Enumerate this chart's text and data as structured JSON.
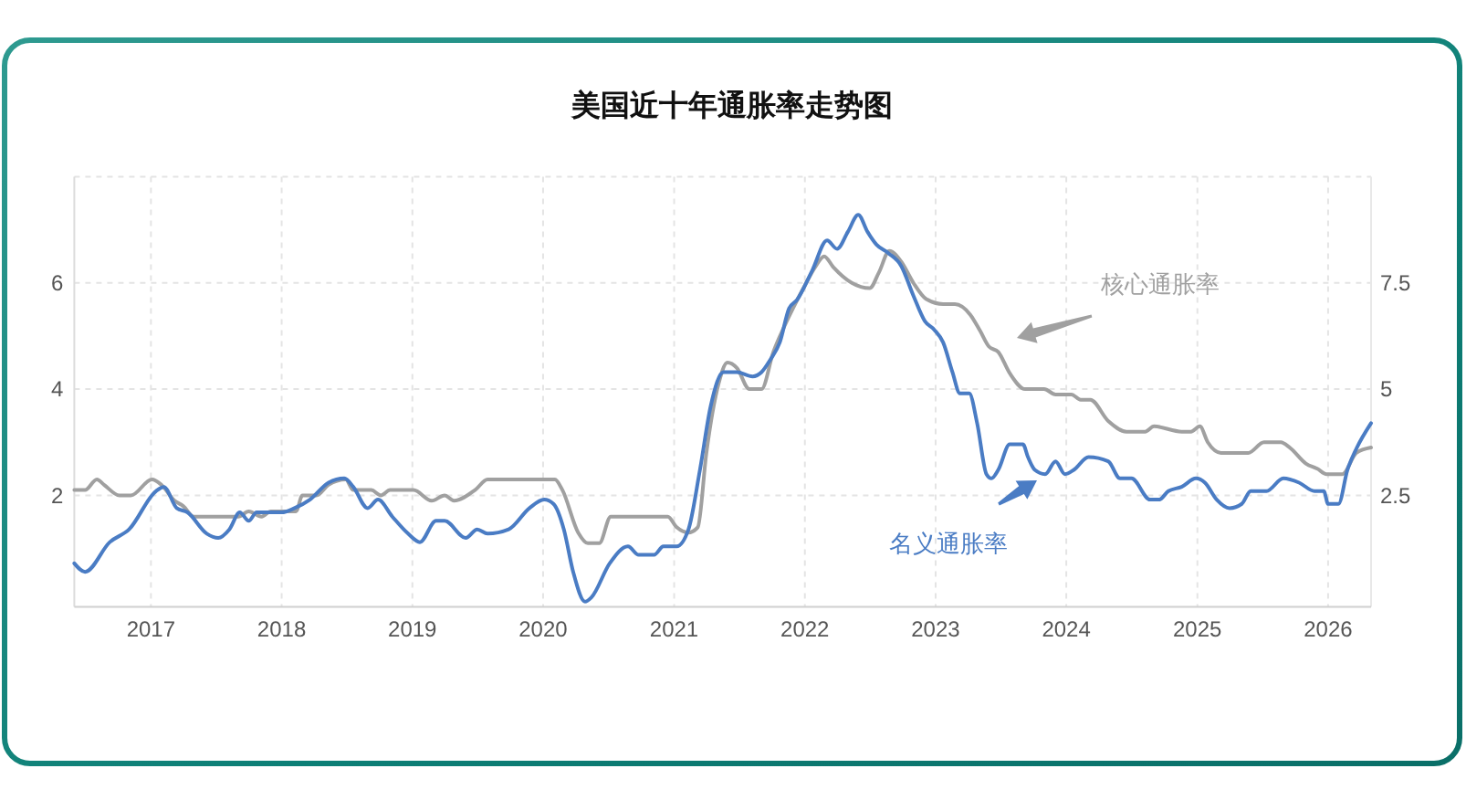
{
  "chart_data": {
    "type": "line",
    "title": "美国近十年通胀率走势图",
    "xlim": [
      "2016-06-01",
      "2026-05-01"
    ],
    "xticks": [
      "2017",
      "2018",
      "2019",
      "2020",
      "2021",
      "2022",
      "2023",
      "2024",
      "2025",
      "2026"
    ],
    "ylim": [
      -0.1,
      8
    ],
    "yticks": [
      2,
      4,
      6,
      {
        "value": 8,
        "label": null
      }
    ],
    "y2lim": [
      -0.125,
      10
    ],
    "y2ticks": [
      2.5,
      5,
      7.5
    ],
    "grid": true,
    "series": [
      {
        "name": "核心通胀率",
        "color": "#a0a0a0",
        "x": [
          "2016-06-01",
          "2016-07-01",
          "2016-08-03",
          "2016-08-23",
          "2016-10-05",
          "2016-11-06",
          "2017-01-04",
          "2017-01-30",
          "2017-03-08",
          "2017-04-01",
          "2017-05-01",
          "2017-06-17",
          "2017-09-02",
          "2017-10-01",
          "2017-11-06",
          "2017-12-02",
          "2018-02-10",
          "2018-02-28",
          "2018-04-08",
          "2018-05-12",
          "2018-06-29",
          "2018-07-20",
          "2018-09-08",
          "2018-10-05",
          "2018-10-31",
          "2019-01-04",
          "2019-02-24",
          "2019-04-01",
          "2019-04-27",
          "2019-06-25",
          "2019-07-30",
          "2019-09-08",
          "2019-10-05",
          "2019-11-24",
          "2020-01-04",
          "2020-02-03",
          "2020-02-24",
          "2020-04-08",
          "2020-05-05",
          "2020-06-06",
          "2020-07-08",
          "2020-09-08",
          "2020-10-05",
          "2020-12-14",
          "2021-01-08",
          "2021-02-10",
          "2021-03-08",
          "2021-04-01",
          "2021-05-05",
          "2021-05-30",
          "2021-06-25",
          "2021-07-30",
          "2021-09-02",
          "2021-10-05",
          "2021-11-06",
          "2021-12-28",
          "2022-01-30",
          "2022-02-24",
          "2022-03-21",
          "2022-05-12",
          "2022-07-01",
          "2022-07-27",
          "2022-08-25",
          "2022-09-27",
          "2022-10-31",
          "2022-12-05",
          "2023-01-22",
          "2023-02-24",
          "2023-04-08",
          "2023-05-05",
          "2023-05-30",
          "2023-06-25",
          "2023-07-27",
          "2023-09-08",
          "2023-10-31",
          "2023-12-02",
          "2024-01-15",
          "2024-02-10",
          "2024-03-08",
          "2024-04-27",
          "2024-06-17",
          "2024-08-08",
          "2024-09-02",
          "2024-11-18",
          "2024-12-14",
          "2025-01-08",
          "2025-01-30",
          "2025-03-08",
          "2025-05-23",
          "2025-07-06",
          "2025-08-22",
          "2025-09-16",
          "2025-10-31",
          "2025-12-02",
          "2025-12-28",
          "2026-02-10",
          "2026-03-21",
          "2026-05-01"
        ],
        "values": [
          2.1,
          2.1,
          2.3,
          2.2,
          2.0,
          2.0,
          2.3,
          2.2,
          1.9,
          1.8,
          1.6,
          1.6,
          1.6,
          1.7,
          1.6,
          1.7,
          1.7,
          2.0,
          2.0,
          2.2,
          2.3,
          2.1,
          2.1,
          2.0,
          2.1,
          2.1,
          1.9,
          2.0,
          1.9,
          2.1,
          2.3,
          2.3,
          2.3,
          2.3,
          2.3,
          2.3,
          2.1,
          1.3,
          1.1,
          1.1,
          1.6,
          1.6,
          1.6,
          1.6,
          1.4,
          1.3,
          1.4,
          2.8,
          4.1,
          4.5,
          4.4,
          4.0,
          4.0,
          4.7,
          5.2,
          5.9,
          6.3,
          6.5,
          6.3,
          6.0,
          5.9,
          6.2,
          6.6,
          6.4,
          6.0,
          5.7,
          5.6,
          5.6,
          5.4,
          5.1,
          4.8,
          4.7,
          4.3,
          4.0,
          4.0,
          3.9,
          3.9,
          3.8,
          3.8,
          3.4,
          3.2,
          3.2,
          3.3,
          3.2,
          3.2,
          3.3,
          3.0,
          2.8,
          2.8,
          3.0,
          3.0,
          2.9,
          2.6,
          2.5,
          2.4,
          2.4,
          2.8,
          2.9
        ]
      },
      {
        "name": "名义通胀率",
        "color": "#4a7cc4",
        "axis": "y2",
        "x": [
          "2016-06-01",
          "2016-07-01",
          "2016-09-08",
          "2016-11-01",
          "2017-01-15",
          "2017-02-06",
          "2017-03-14",
          "2017-04-13",
          "2017-06-06",
          "2017-07-08",
          "2017-08-08",
          "2017-09-06",
          "2017-10-01",
          "2017-10-23",
          "2017-11-14",
          "2018-01-01",
          "2018-02-06",
          "2018-03-21",
          "2018-05-12",
          "2018-06-25",
          "2018-07-20",
          "2018-08-29",
          "2018-09-27",
          "2018-11-06",
          "2018-12-20",
          "2019-01-22",
          "2019-03-08",
          "2019-04-01",
          "2019-05-30",
          "2019-07-01",
          "2019-07-30",
          "2019-09-27",
          "2019-11-24",
          "2020-01-04",
          "2020-01-30",
          "2020-02-28",
          "2020-03-25",
          "2020-04-27",
          "2020-05-15",
          "2020-07-05",
          "2020-08-25",
          "2020-09-24",
          "2020-11-06",
          "2020-12-02",
          "2021-01-08",
          "2021-02-10",
          "2021-03-14",
          "2021-04-13",
          "2021-05-19",
          "2021-06-25",
          "2021-08-08",
          "2021-09-02",
          "2021-09-27",
          "2021-10-23",
          "2021-11-18",
          "2021-12-10",
          "2022-01-22",
          "2022-03-04",
          "2022-04-01",
          "2022-05-01",
          "2022-05-30",
          "2022-06-25",
          "2022-07-20",
          "2022-08-22",
          "2022-09-27",
          "2022-10-31",
          "2022-12-02",
          "2022-12-28",
          "2023-01-22",
          "2023-02-17",
          "2023-03-10",
          "2023-04-05",
          "2023-04-27",
          "2023-05-23",
          "2023-06-06",
          "2023-06-25",
          "2023-07-27",
          "2023-09-02",
          "2023-09-16",
          "2023-10-05",
          "2023-11-03",
          "2023-12-02",
          "2023-12-28",
          "2024-01-22",
          "2024-03-03",
          "2024-04-27",
          "2024-05-30",
          "2024-07-01",
          "2024-08-22",
          "2024-09-16",
          "2024-10-12",
          "2024-11-18",
          "2024-12-28",
          "2025-01-22",
          "2025-02-24",
          "2025-04-01",
          "2025-05-05",
          "2025-05-30",
          "2025-07-13",
          "2025-08-29",
          "2025-10-12",
          "2025-11-24",
          "2025-12-20",
          "2026-01-01",
          "2026-01-30",
          "2026-02-24",
          "2026-03-21",
          "2026-05-01"
        ],
        "values": [
          0.9,
          0.7,
          1.4,
          1.7,
          2.6,
          2.7,
          2.2,
          2.1,
          1.6,
          1.5,
          1.7,
          2.1,
          1.9,
          2.1,
          2.1,
          2.1,
          2.2,
          2.4,
          2.8,
          2.9,
          2.7,
          2.2,
          2.4,
          2.0,
          1.6,
          1.4,
          1.9,
          1.9,
          1.5,
          1.7,
          1.6,
          1.7,
          2.2,
          2.4,
          2.3,
          1.7,
          0.7,
          0.0,
          0.1,
          0.9,
          1.3,
          1.1,
          1.1,
          1.3,
          1.3,
          1.7,
          3.1,
          4.6,
          5.4,
          5.4,
          5.3,
          5.4,
          5.7,
          6.1,
          6.9,
          7.1,
          7.8,
          8.5,
          8.3,
          8.7,
          9.1,
          8.7,
          8.4,
          8.2,
          7.9,
          7.2,
          6.6,
          6.4,
          6.1,
          5.4,
          4.9,
          4.9,
          4.2,
          3.0,
          2.9,
          3.1,
          3.7,
          3.7,
          3.4,
          3.1,
          3.0,
          3.3,
          3.0,
          3.1,
          3.4,
          3.3,
          2.9,
          2.9,
          2.4,
          2.4,
          2.6,
          2.7,
          2.9,
          2.8,
          2.4,
          2.2,
          2.3,
          2.6,
          2.6,
          2.9,
          2.8,
          2.6,
          2.6,
          2.3,
          2.3,
          3.1,
          3.6,
          4.2
        ]
      }
    ]
  }
}
